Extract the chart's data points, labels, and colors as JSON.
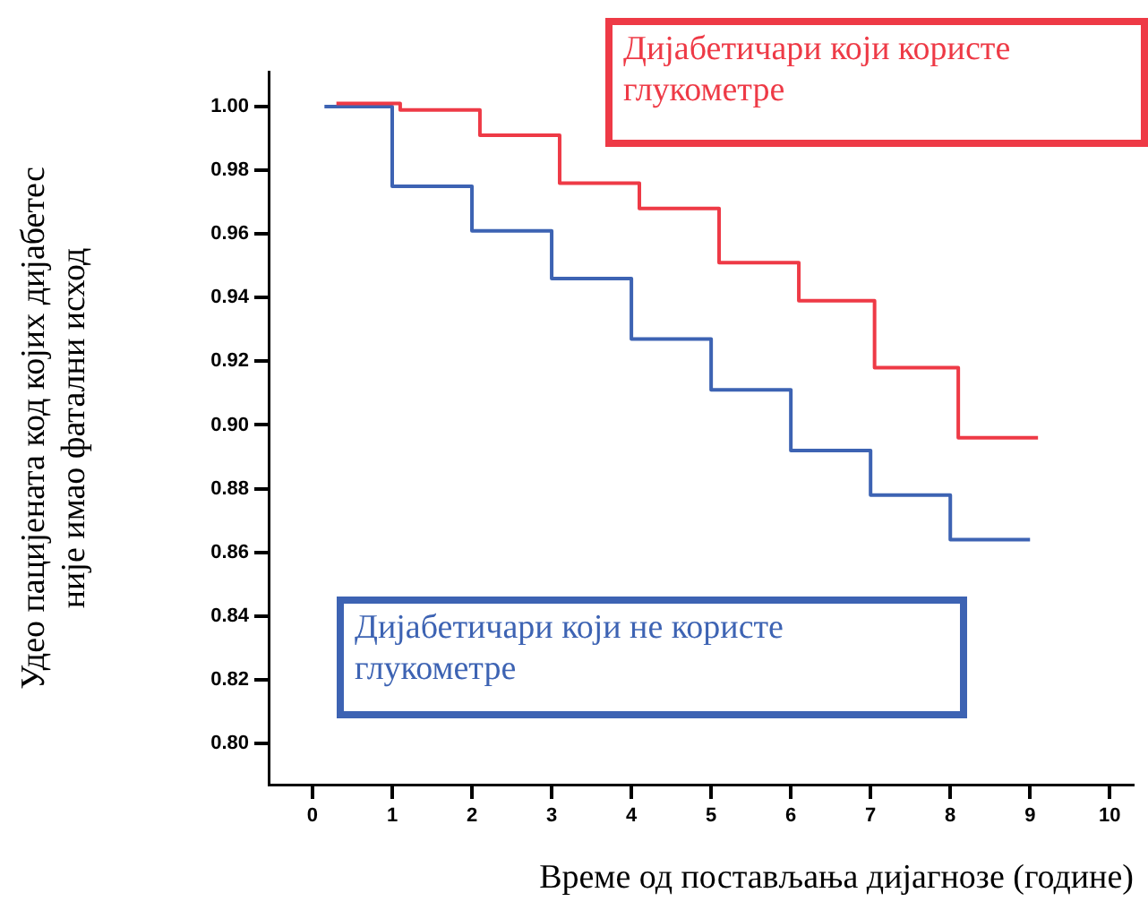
{
  "chart_data": {
    "type": "step",
    "xlabel": "Време од постављања дијагнозе (године)",
    "ylabel": "Удео пацијената код којих дијабетес није имао фатални исход",
    "series": [
      {
        "name": "Дијабетичари који користе глукометре",
        "color": "#ee3a46",
        "x": [
          0.3,
          1.1,
          2.1,
          3.1,
          4.1,
          5.1,
          6.1,
          7.05,
          8.1,
          9.1
        ],
        "values": [
          1.001,
          0.999,
          0.991,
          0.976,
          0.968,
          0.951,
          0.939,
          0.918,
          0.896,
          0.896
        ]
      },
      {
        "name": "Дијабетичари који не користе глукометре",
        "color": "#3d63b3",
        "x": [
          0.15,
          1,
          2,
          3,
          4,
          5,
          6,
          7,
          8,
          9
        ],
        "values": [
          1.0,
          0.975,
          0.961,
          0.946,
          0.927,
          0.911,
          0.892,
          0.878,
          0.864,
          0.864
        ]
      }
    ],
    "xlim": [
      -0.55,
      10.3
    ],
    "xticks": [
      0,
      1,
      2,
      3,
      4,
      5,
      6,
      7,
      8,
      9,
      10
    ],
    "ylim": [
      0.787,
      1.011
    ],
    "yticks": [
      {
        "value": 0.8,
        "label": "0.80"
      },
      {
        "value": 0.82,
        "label": "0.82"
      },
      {
        "value": 0.84,
        "label": "0.84"
      },
      {
        "value": 0.86,
        "label": "0.86"
      },
      {
        "value": 0.88,
        "label": "0.88"
      },
      {
        "value": 0.9,
        "label": "0.90"
      },
      {
        "value": 0.92,
        "label": "0.92"
      },
      {
        "value": 0.94,
        "label": "0.94"
      },
      {
        "value": 0.96,
        "label": "0.96"
      },
      {
        "value": 0.98,
        "label": "0.98"
      },
      {
        "value": 1,
        "label": "1.00"
      }
    ],
    "grid": false,
    "marker": "none",
    "line_style": "solid"
  }
}
